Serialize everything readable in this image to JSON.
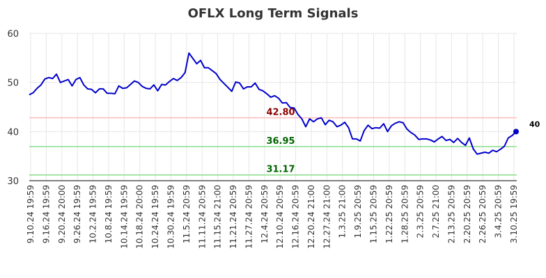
{
  "chart_data": {
    "type": "line",
    "title": "OFLX Long Term Signals",
    "xlabel": "",
    "ylabel": "",
    "ylim": [
      30,
      60
    ],
    "yticks": [
      30,
      40,
      50,
      60
    ],
    "grid": true,
    "line_color": "#0000cc",
    "x_tick_labels": [
      "9.10.24 19:59",
      "9.16.24 19:59",
      "9.20.24 20:00",
      "9.26.24 19:59",
      "10.2.24 19:59",
      "10.8.24 19:59",
      "10.14.24 19:59",
      "10.18.24 20:00",
      "10.24.24 19:59",
      "10.30.24 19:59",
      "11.5.24 20:59",
      "11.11.24 20:59",
      "11.15.24 21:00",
      "11.21.24 20:59",
      "11.27.24 20:59",
      "12.4.24 20:59",
      "12.10.24 20:59",
      "12.16.24 20:59",
      "12.20.24 21:00",
      "12.27.24 21:00",
      "1.3.25 21:00",
      "1.9.25 20:59",
      "1.15.25 20:59",
      "1.22.25 20:59",
      "1.28.25 20:59",
      "2.3.25 20:59",
      "2.7.25 21:00",
      "2.13.25 20:59",
      "2.20.25 20:59",
      "2.26.25 20:59",
      "3.4.25 20:59",
      "3.10.25 19:59"
    ],
    "series": [
      {
        "values": [
          47.5,
          47.9,
          48.8,
          49.5,
          50.7,
          51.0,
          50.8,
          51.7,
          50.0,
          50.3,
          50.6,
          49.3,
          50.6,
          51.0,
          49.5,
          48.7,
          48.6,
          47.9,
          48.7,
          48.7,
          47.8,
          47.8,
          47.7,
          49.3,
          48.8,
          48.9,
          49.6,
          50.3,
          50.0,
          49.2,
          48.8,
          48.7,
          49.5,
          48.3,
          49.6,
          49.5,
          50.2,
          50.8,
          50.4,
          51.0,
          52.0,
          56.0,
          54.9,
          53.8,
          54.5,
          53.0,
          53.0,
          52.4,
          51.8,
          50.6,
          49.8,
          49.0,
          48.2,
          50.1,
          49.9,
          48.7,
          49.1,
          49.1,
          49.9,
          48.6,
          48.3,
          47.7,
          47.0,
          47.3,
          46.8,
          45.8,
          45.9,
          44.9,
          44.8,
          43.5,
          42.6,
          41.0,
          42.6,
          42.0,
          42.6,
          42.8,
          41.4,
          42.3,
          42.0,
          41.0,
          41.3,
          41.9,
          40.8,
          38.5,
          38.5,
          38.1,
          40.2,
          41.3,
          40.6,
          40.8,
          40.7,
          41.6,
          40.0,
          41.2,
          41.7,
          42.0,
          41.8,
          40.5,
          39.8,
          39.3,
          38.4,
          38.5,
          38.5,
          38.3,
          37.9,
          38.5,
          39.0,
          38.2,
          38.4,
          37.8,
          38.6,
          37.8,
          37.2,
          38.7,
          36.5,
          35.4,
          35.6,
          35.8,
          35.6,
          36.2,
          35.9,
          36.4,
          37.0,
          38.7,
          39.2,
          40.0
        ]
      }
    ],
    "horizontal_lines": [
      {
        "value": 42.8,
        "label": "42.80",
        "line_color": "#ffbbbb",
        "label_color": "#8b0000"
      },
      {
        "value": 36.95,
        "label": "36.95",
        "line_color": "#88dd88",
        "label_color": "#006400"
      },
      {
        "value": 31.17,
        "label": "31.17",
        "line_color": "#88dd88",
        "label_color": "#006400"
      }
    ],
    "last_point": {
      "value": 40,
      "label": "40",
      "marker_color": "#0000cc"
    }
  }
}
